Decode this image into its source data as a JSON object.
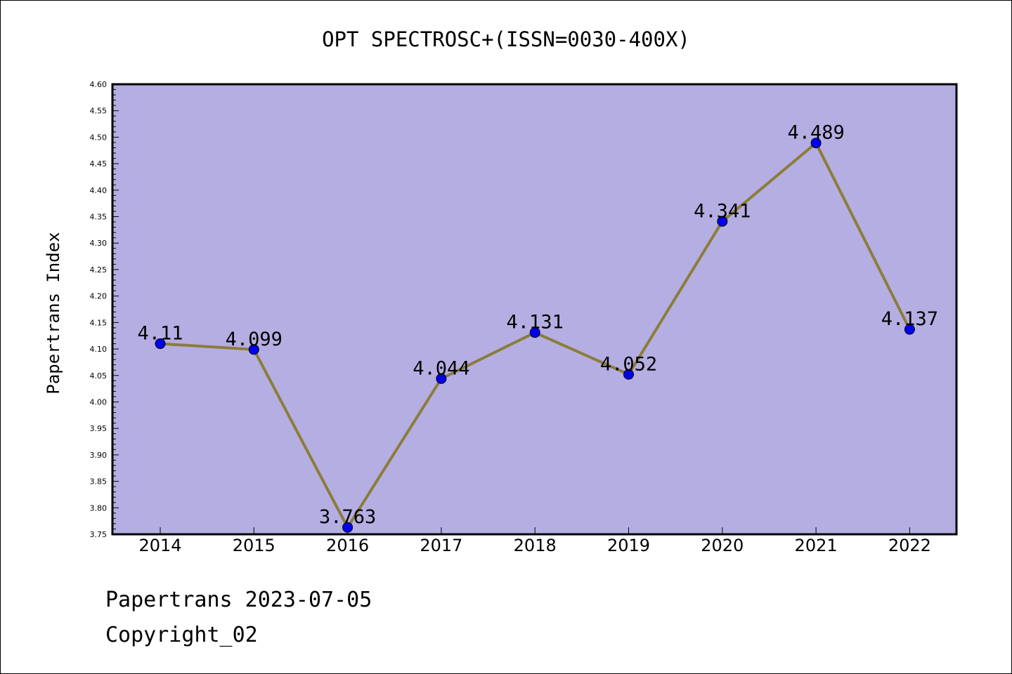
{
  "chart_data": {
    "type": "line",
    "title": "OPT SPECTROSC+(ISSN=0030-400X)",
    "xlabel": "",
    "ylabel": "Papertrans Index",
    "categories": [
      "2014",
      "2015",
      "2016",
      "2017",
      "2018",
      "2019",
      "2020",
      "2021",
      "2022"
    ],
    "series": [
      {
        "values": [
          4.11,
          4.099,
          3.763,
          4.044,
          4.131,
          4.052,
          4.341,
          4.489,
          4.137
        ],
        "labels": [
          "4.11",
          "4.099",
          "3.763",
          "4.044",
          "4.131",
          "4.052",
          "4.341",
          "4.489",
          "4.137"
        ]
      }
    ],
    "ylim": [
      3.75,
      4.6
    ],
    "yticks": [
      "3.75",
      "3.80",
      "3.85",
      "3.90",
      "3.95",
      "4.00",
      "4.05",
      "4.10",
      "4.15",
      "4.20",
      "4.25",
      "4.30",
      "4.35",
      "4.40",
      "4.45",
      "4.50",
      "4.55",
      "4.60"
    ],
    "grid": false,
    "colors": {
      "plot_background": "#b5aee3",
      "line": "#8b7d3a",
      "marker": "#0000ee"
    }
  },
  "footer": {
    "line1": "Papertrans 2023-07-05",
    "line2": "Copyright_02"
  }
}
